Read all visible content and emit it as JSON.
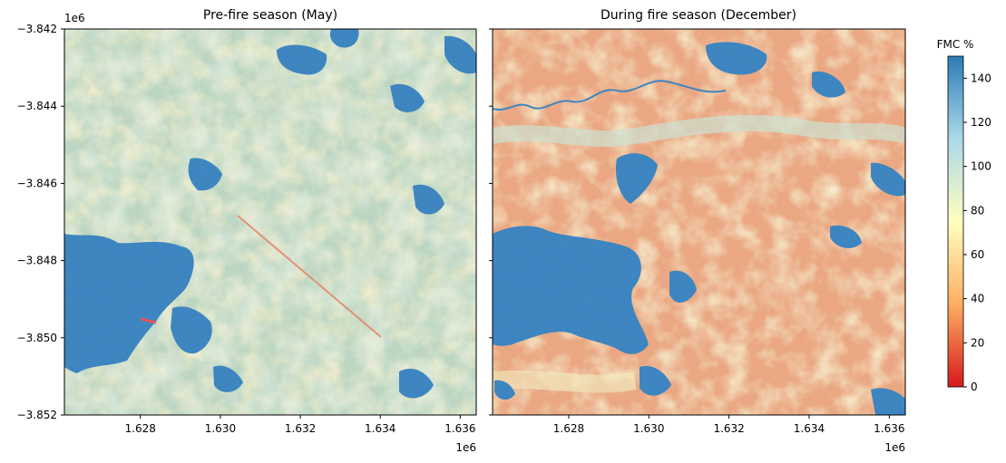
{
  "chart_data": [
    {
      "type": "heatmap",
      "title": "Pre-fire season (May)",
      "xlabel": "",
      "ylabel": "",
      "xlim": [
        1626100,
        1636400
      ],
      "ylim": [
        -3852000,
        -3842000
      ],
      "xticks": [
        1628000,
        1630000,
        1632000,
        1634000,
        1636000
      ],
      "xtick_labels": [
        "1.628",
        "1.630",
        "1.632",
        "1.634",
        "1.636"
      ],
      "x_offset_label": "1e6",
      "yticks": [
        -3842000,
        -3844000,
        -3846000,
        -3848000,
        -3850000,
        -3852000
      ],
      "ytick_labels": [
        "−3.842",
        "−3.844",
        "−3.846",
        "−3.848",
        "−3.850",
        "−3.852"
      ],
      "y_offset_label": "1e6",
      "value_range": [
        0,
        150
      ]
    },
    {
      "type": "heatmap",
      "title": "During fire season (December)",
      "xlabel": "",
      "ylabel": "",
      "xlim": [
        1626100,
        1636400
      ],
      "ylim": [
        -3852000,
        -3842000
      ],
      "xticks": [
        1628000,
        1630000,
        1632000,
        1634000,
        1636000
      ],
      "xtick_labels": [
        "1.628",
        "1.630",
        "1.632",
        "1.634",
        "1.636"
      ],
      "x_offset_label": "1e6",
      "yticks": [
        -3842000,
        -3844000,
        -3846000,
        -3848000,
        -3850000,
        -3852000
      ],
      "value_range": [
        0,
        150
      ]
    }
  ],
  "colorbar": {
    "label": "FMC %",
    "colormap": "RdYlBu",
    "range": [
      0,
      150
    ],
    "ticks": [
      0,
      20,
      40,
      60,
      80,
      100,
      120,
      140
    ],
    "tick_labels": [
      "0",
      "20",
      "40",
      "60",
      "80",
      "100",
      "120",
      "140"
    ],
    "colors": [
      "#d7191c",
      "#fdae61",
      "#ffffbf",
      "#abd9e9",
      "#2c7bb6"
    ]
  }
}
